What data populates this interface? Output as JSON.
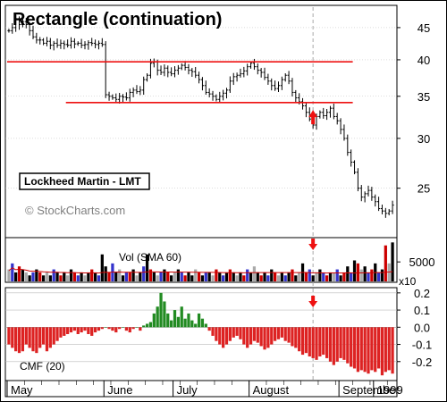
{
  "title": "Rectangle (continuation)",
  "stock_label": "Lockheed Martin - LMT",
  "watermark": "© StockCharts.com",
  "colors": {
    "resistance_line": "#ee1111",
    "price_bar": "#000000",
    "volume_up": "#000000",
    "volume_down": "#cc0000",
    "volume_neutral": "#3333cc",
    "volume_grey": "#aaaaaa",
    "cmf_positive": "#228b22",
    "cmf_negative": "#dd2222",
    "arrow": "#ee1111",
    "marker_line": "#aaaaaa",
    "grid": "#bbbbbb"
  },
  "chart_data": [
    {
      "type": "ohlc",
      "name": "price",
      "y_ticks": [
        25,
        30,
        35,
        40,
        45
      ],
      "ylim": [
        21,
        48.5
      ],
      "scale": "log",
      "x_labels": [
        "May",
        "June",
        "July",
        "August",
        "September",
        "1999"
      ],
      "annotations": {
        "resistance_line": {
          "value": 39.7,
          "from_month": "May",
          "to_month": "September"
        },
        "support_line": {
          "value": 34.2,
          "from_month": "June",
          "to_month": "September"
        },
        "breakout_arrow": "up-arrow",
        "marker": "September"
      },
      "closes": [
        44.5,
        45.0,
        46.5,
        45.5,
        46.0,
        45.5,
        44.5,
        43.5,
        43.0,
        43.0,
        42.5,
        42.8,
        42.2,
        42.5,
        42.2,
        42.5,
        42.3,
        42.2,
        42.8,
        42.4,
        42.5,
        42.2,
        42.3,
        42.6,
        42.5,
        42.3,
        42.5,
        42.3,
        35.2,
        35.0,
        34.8,
        34.6,
        35.0,
        34.9,
        34.8,
        35.5,
        35.8,
        35.6,
        35.8,
        37.2,
        37.8,
        39.5,
        39.7,
        38.5,
        38.2,
        38.8,
        38.2,
        38.0,
        38.5,
        38.8,
        39.2,
        38.9,
        38.5,
        38.3,
        37.8,
        37.2,
        36.4,
        35.5,
        35.3,
        35.0,
        34.6,
        35.0,
        35.4,
        35.8,
        37.0,
        37.6,
        37.8,
        38.0,
        38.4,
        39.0,
        39.5,
        39.0,
        38.5,
        38.2,
        37.5,
        37.0,
        36.4,
        36.0,
        36.4,
        37.2,
        37.8,
        37.0,
        35.5,
        34.8,
        34.3,
        33.8,
        33.0,
        32.2,
        31.5,
        32.5,
        33.0,
        32.6,
        33.0,
        33.5,
        32.5,
        32.0,
        31.0,
        30.0,
        28.5,
        27.5,
        26.5,
        25.0,
        24.2,
        24.5,
        24.8,
        24.2,
        23.8,
        23.2,
        23.0,
        22.8,
        23.0,
        23.5
      ],
      "volumes": [
        4,
        6,
        3,
        5,
        4,
        3,
        2,
        3,
        4,
        3,
        2,
        3,
        2,
        4,
        3,
        2,
        3,
        2,
        4,
        3,
        2,
        3,
        2,
        3,
        4,
        3,
        2,
        9,
        5,
        3,
        6,
        3,
        4,
        2,
        3,
        3,
        4,
        2,
        3,
        5,
        9,
        4,
        3,
        2,
        3,
        4,
        3,
        2,
        3,
        4,
        3,
        2,
        3,
        2,
        4,
        3,
        2,
        3,
        3,
        2,
        4,
        3,
        2,
        3,
        4,
        3,
        2,
        3,
        2,
        4,
        3,
        5,
        3,
        2,
        3,
        2,
        4,
        3,
        2,
        3,
        2,
        3,
        4,
        2,
        3,
        6,
        3,
        4,
        2,
        3,
        4,
        3,
        2,
        3,
        3,
        4,
        2,
        3,
        5,
        3,
        7,
        6,
        4,
        5,
        3,
        4,
        6,
        3,
        4,
        12,
        6,
        13
      ],
      "volume_colors": [
        "g",
        "b",
        "k",
        "r",
        "k",
        "g",
        "k",
        "b",
        "k",
        "r",
        "k",
        "g",
        "k",
        "b",
        "k",
        "r",
        "k",
        "g",
        "k",
        "r",
        "b",
        "k",
        "g",
        "k",
        "r",
        "k",
        "b",
        "k",
        "k",
        "r",
        "b",
        "k",
        "g",
        "k",
        "b",
        "r",
        "k",
        "g",
        "k",
        "b",
        "k",
        "r",
        "k",
        "g",
        "b",
        "k",
        "r",
        "k",
        "g",
        "k",
        "b",
        "r",
        "k",
        "k",
        "g",
        "r",
        "k",
        "b",
        "k",
        "g",
        "r",
        "k",
        "b",
        "k",
        "r",
        "k",
        "g",
        "k",
        "r",
        "b",
        "k",
        "g",
        "k",
        "r",
        "k",
        "b",
        "k",
        "r",
        "g",
        "k",
        "b",
        "k",
        "r",
        "k",
        "g",
        "k",
        "r",
        "b",
        "k",
        "g",
        "k",
        "b",
        "r",
        "k",
        "g",
        "b",
        "k",
        "r",
        "k",
        "b",
        "k",
        "r",
        "g",
        "k",
        "b",
        "r",
        "k",
        "b",
        "k",
        "r",
        "g",
        "k"
      ]
    },
    {
      "type": "bar",
      "name": "volume",
      "label": "Vol (SMA 60)",
      "y_ticks": [
        5000
      ],
      "unit_label": "x10",
      "ylim": [
        0,
        14
      ]
    },
    {
      "type": "bar",
      "name": "cmf",
      "label": "CMF (20)",
      "y_ticks": [
        0.2,
        0.1,
        0.0,
        -0.1,
        -0.2
      ],
      "y_tick_labels": [
        "0.2",
        "0.1",
        "0.0",
        "-0.1",
        "-0.2"
      ],
      "ylim": [
        -0.3,
        0.22
      ],
      "values": [
        -0.1,
        -0.12,
        -0.14,
        -0.15,
        -0.14,
        -0.1,
        -0.12,
        -0.14,
        -0.15,
        -0.12,
        -0.1,
        -0.14,
        -0.12,
        -0.1,
        -0.08,
        -0.06,
        -0.05,
        -0.04,
        -0.03,
        -0.02,
        -0.04,
        -0.03,
        -0.02,
        -0.04,
        -0.05,
        -0.03,
        -0.02,
        -0.01,
        0.0,
        -0.01,
        -0.02,
        -0.03,
        -0.01,
        0.0,
        -0.02,
        -0.03,
        -0.01,
        0.0,
        -0.02,
        0.01,
        0.02,
        0.03,
        0.08,
        0.12,
        0.2,
        0.15,
        0.08,
        0.04,
        0.1,
        0.06,
        0.12,
        0.05,
        0.08,
        0.04,
        0.02,
        0.08,
        0.05,
        0.02,
        -0.02,
        -0.05,
        -0.08,
        -0.1,
        -0.12,
        -0.1,
        -0.08,
        -0.06,
        -0.05,
        -0.07,
        -0.1,
        -0.12,
        -0.1,
        -0.08,
        -0.09,
        -0.11,
        -0.13,
        -0.12,
        -0.1,
        -0.08,
        -0.07,
        -0.06,
        -0.08,
        -0.09,
        -0.11,
        -0.12,
        -0.14,
        -0.16,
        -0.15,
        -0.17,
        -0.18,
        -0.19,
        -0.17,
        -0.16,
        -0.18,
        -0.2,
        -0.22,
        -0.2,
        -0.18,
        -0.19,
        -0.21,
        -0.23,
        -0.24,
        -0.26,
        -0.25,
        -0.26,
        -0.27,
        -0.25,
        -0.26,
        -0.24,
        -0.28,
        -0.26,
        -0.25,
        -0.27
      ]
    }
  ]
}
